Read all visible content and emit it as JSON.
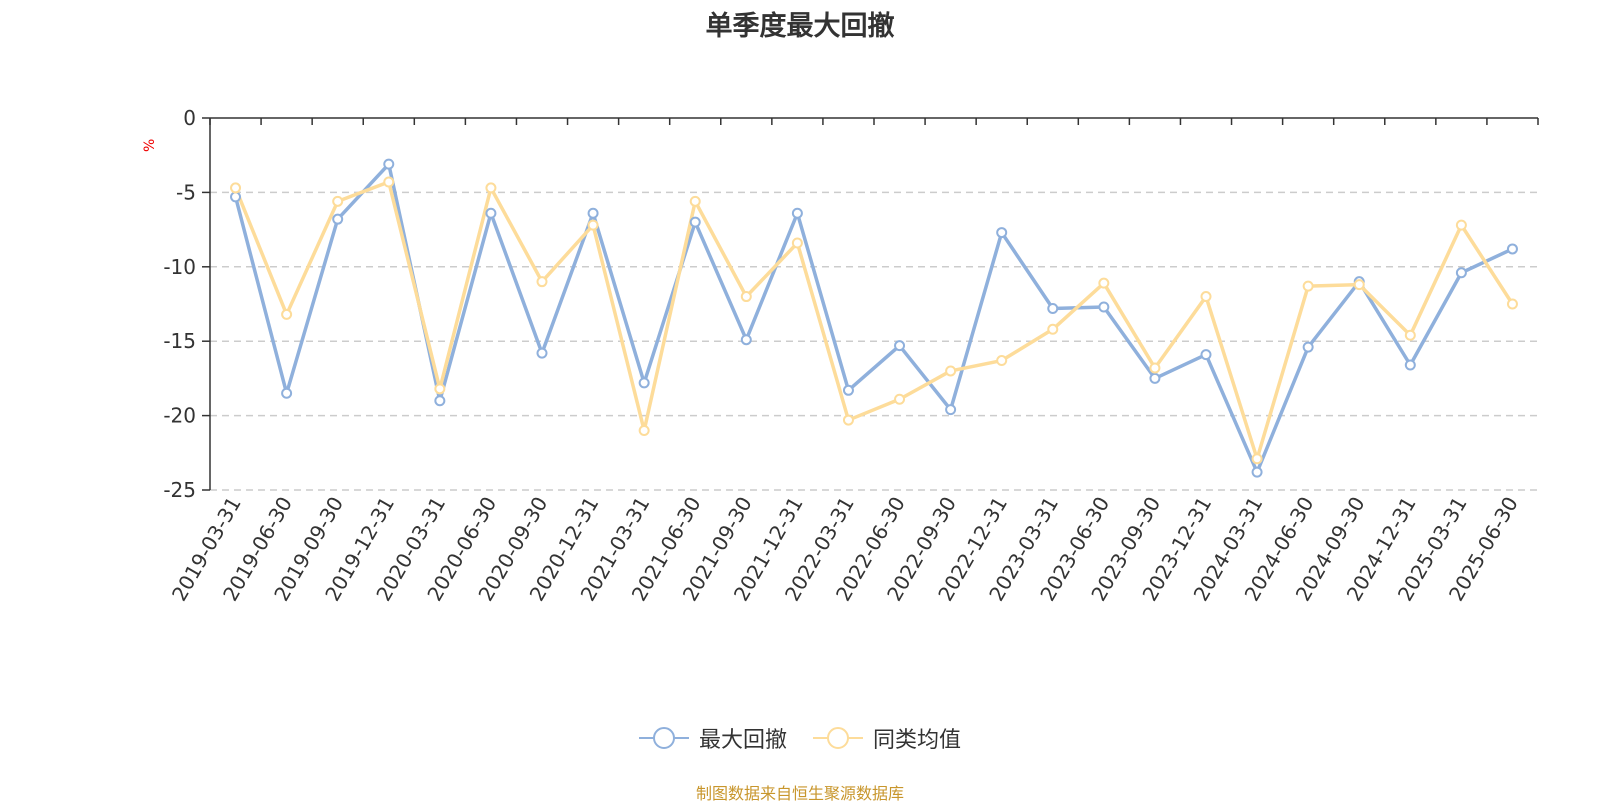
{
  "title": "单季度最大回撤",
  "unit_label": "%",
  "source": "制图数据来自恒生聚源数据库",
  "colors": {
    "series1": "#8fb0dc",
    "series2": "#fddc9a",
    "grid": "#cccccc",
    "axis": "#333333",
    "text": "#333333"
  },
  "legend": [
    {
      "name": "最大回撤",
      "color": "#8fb0dc",
      "icon": "circle-line-icon"
    },
    {
      "name": "同类均值",
      "color": "#fddc9a",
      "icon": "circle-line-icon"
    }
  ],
  "chart_data": {
    "type": "line",
    "title": "单季度最大回撤",
    "ylabel": "%",
    "ylim": [
      -25,
      0
    ],
    "yticks": [
      0,
      -5,
      -10,
      -15,
      -20,
      -25
    ],
    "grid": true,
    "legend_position": "bottom-center",
    "categories": [
      "2019-03-31",
      "2019-06-30",
      "2019-09-30",
      "2019-12-31",
      "2020-03-31",
      "2020-06-30",
      "2020-09-30",
      "2020-12-31",
      "2021-03-31",
      "2021-06-30",
      "2021-09-30",
      "2021-12-31",
      "2022-03-31",
      "2022-06-30",
      "2022-09-30",
      "2022-12-31",
      "2023-03-31",
      "2023-06-30",
      "2023-09-30",
      "2023-12-31",
      "2024-03-31",
      "2024-06-30",
      "2024-09-30",
      "2024-12-31",
      "2025-03-31",
      "2025-06-30"
    ],
    "series": [
      {
        "name": "最大回撤",
        "values": [
          -5.3,
          -18.5,
          -6.8,
          -3.1,
          -19.0,
          -6.4,
          -15.8,
          -6.4,
          -17.8,
          -7.0,
          -14.9,
          -6.4,
          -18.3,
          -15.3,
          -19.6,
          -7.7,
          -12.8,
          -12.7,
          -17.5,
          -15.9,
          -23.8,
          -15.4,
          -11.0,
          -16.6,
          -10.4,
          -8.8
        ]
      },
      {
        "name": "同类均值",
        "values": [
          -4.7,
          -13.2,
          -5.6,
          -4.3,
          -18.2,
          -4.7,
          -11.0,
          -7.2,
          -21.0,
          -5.6,
          -12.0,
          -8.4,
          -20.3,
          -18.9,
          -17.0,
          -16.3,
          -14.2,
          -11.1,
          -16.8,
          -12.0,
          -22.9,
          -11.3,
          -11.2,
          -14.6,
          -7.2,
          -12.5
        ]
      }
    ]
  }
}
